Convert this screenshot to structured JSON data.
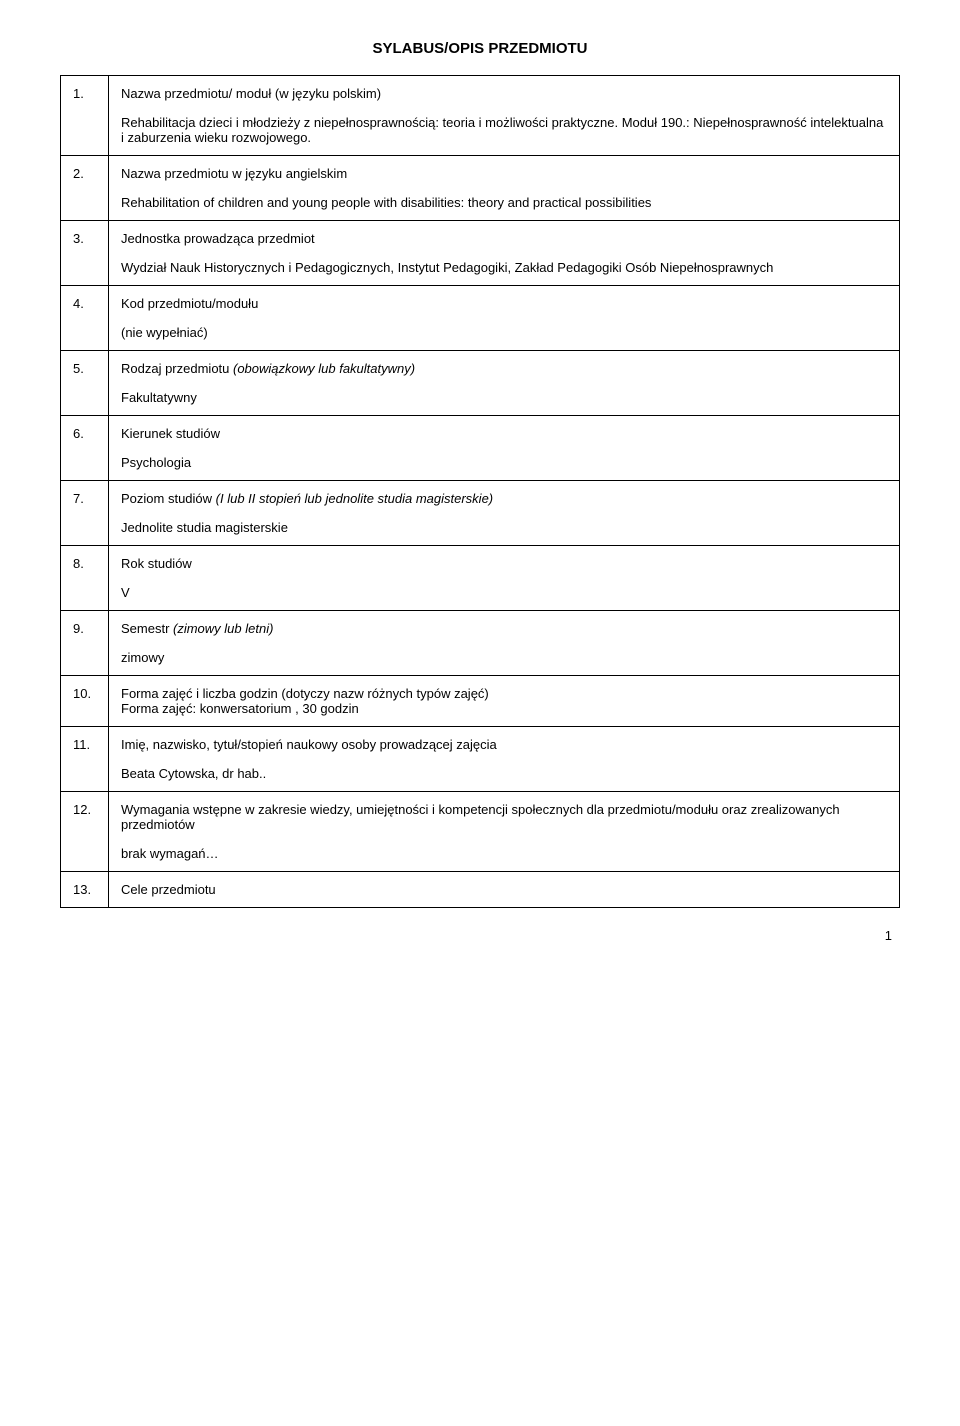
{
  "title": "SYLABUS/OPIS PRZEDMIOTU",
  "pageNumber": "1",
  "rows": [
    {
      "num": "1.",
      "heading": "Nazwa przedmiotu/ moduł (w języku polskim)",
      "body": "Rehabilitacja dzieci i młodzieży z niepełnosprawnością: teoria i możliwości praktyczne. Moduł 190.:  Niepełnosprawność intelektualna i zaburzenia wieku rozwojowego."
    },
    {
      "num": "2.",
      "heading": "Nazwa przedmiotu w języku angielskim",
      "body": "Rehabilitation of children and young people with disabilities: theory and practical possibilities"
    },
    {
      "num": "3.",
      "heading": "Jednostka prowadząca przedmiot",
      "body": "Wydział Nauk Historycznych i Pedagogicznych, Instytut Pedagogiki, Zakład Pedagogiki Osób Niepełnosprawnych"
    },
    {
      "num": "4.",
      "heading": "Kod przedmiotu/modułu",
      "body": "(nie wypełniać)"
    },
    {
      "num": "5.",
      "heading_prefix": "Rodzaj przedmiotu ",
      "heading_italic": "(obowiązkowy lub fakultatywny)",
      "body": "Fakultatywny"
    },
    {
      "num": "6.",
      "heading": "Kierunek studiów",
      "body": "Psychologia"
    },
    {
      "num": "7.",
      "heading_prefix": "Poziom studiów ",
      "heading_italic": "(I lub II stopień lub jednolite studia magisterskie)",
      "body": "Jednolite studia magisterskie"
    },
    {
      "num": "8.",
      "heading": "Rok studiów",
      "body": "V"
    },
    {
      "num": "9.",
      "heading_prefix": "Semestr ",
      "heading_italic": "(zimowy lub letni)",
      "body": "zimowy"
    },
    {
      "num": "10.",
      "heading": "Forma zajęć i liczba godzin (dotyczy nazw różnych typów zajęć)",
      "body_inline": "Forma zajęć: konwersatorium ,  30  godzin"
    },
    {
      "num": "11.",
      "heading": "Imię, nazwisko, tytuł/stopień naukowy osoby prowadzącej zajęcia",
      "body": "Beata Cytowska, dr hab.."
    },
    {
      "num": "12.",
      "heading": "Wymagania wstępne w zakresie wiedzy, umiejętności i kompetencji społecznych dla przedmiotu/modułu oraz zrealizowanych przedmiotów",
      "body": "brak wymagań…"
    },
    {
      "num": "13.",
      "heading": "Cele przedmiotu"
    }
  ]
}
